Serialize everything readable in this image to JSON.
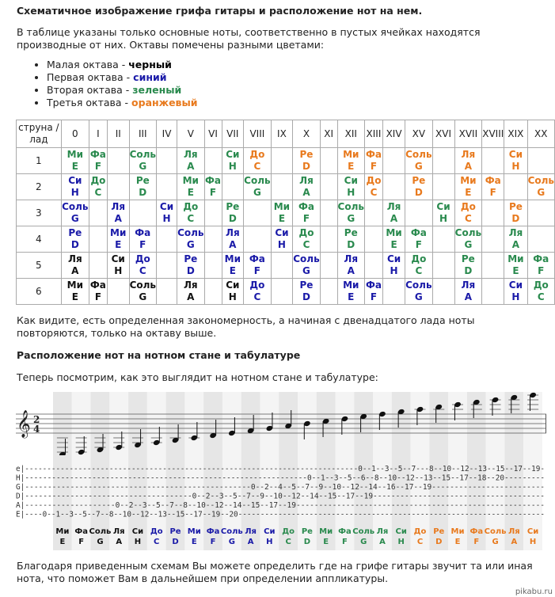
{
  "title": "Схематичное изображение грифа гитары и расположение нот на нем.",
  "intro": "В таблице указаны только основные ноты, соответственно в пустых ячейках находятся производные от них. Октавы помечены разными цветами:",
  "octaves": [
    {
      "label": "Малая октава - ",
      "color_name": "черный",
      "key": "k"
    },
    {
      "label": "Первая октава - ",
      "color_name": "синий",
      "key": "b"
    },
    {
      "label": "Вторая октава - ",
      "color_name": "зеленый",
      "key": "g"
    },
    {
      "label": "Третья октава - ",
      "color_name": "оранжевый",
      "key": "o"
    }
  ],
  "colors": {
    "k": "#111111",
    "b": "#1a1aa8",
    "g": "#2a8a4e",
    "o": "#e87a1e"
  },
  "table": {
    "corner": "струна / лад",
    "frets": [
      "0",
      "I",
      "II",
      "III",
      "IV",
      "V",
      "VI",
      "VII",
      "VIII",
      "IX",
      "X",
      "XI",
      "XII",
      "XIII",
      "XIV",
      "XV",
      "XVI",
      "XVII",
      "XVIII",
      "XIX",
      "XX"
    ],
    "rows": [
      {
        "string": "1",
        "cells": [
          [
            "Ми",
            "Е",
            "g"
          ],
          [
            "Фа",
            "F",
            "g"
          ],
          null,
          [
            "Соль",
            "G",
            "g"
          ],
          null,
          [
            "Ля",
            "A",
            "g"
          ],
          null,
          [
            "Си",
            "H",
            "g"
          ],
          [
            "До",
            "C",
            "o"
          ],
          null,
          [
            "Ре",
            "D",
            "o"
          ],
          null,
          [
            "Ми",
            "E",
            "o"
          ],
          [
            "Фа",
            "F",
            "o"
          ],
          null,
          [
            "Соль",
            "G",
            "o"
          ],
          null,
          [
            "Ля",
            "A",
            "o"
          ],
          null,
          [
            "Си",
            "H",
            "o"
          ],
          null
        ]
      },
      {
        "string": "2",
        "cells": [
          [
            "Си",
            "Н",
            "b"
          ],
          [
            "До",
            "С",
            "g"
          ],
          null,
          [
            "Ре",
            "D",
            "g"
          ],
          null,
          [
            "Ми",
            "Е",
            "g"
          ],
          [
            "Фа",
            "F",
            "g"
          ],
          null,
          [
            "Соль",
            "G",
            "g"
          ],
          null,
          [
            "Ля",
            "А",
            "g"
          ],
          null,
          [
            "Си",
            "Н",
            "g"
          ],
          [
            "До",
            "C",
            "o"
          ],
          null,
          [
            "Ре",
            "D",
            "o"
          ],
          null,
          [
            "Ми",
            "E",
            "o"
          ],
          [
            "Фа",
            "F",
            "o"
          ],
          null,
          [
            "Соль",
            "G",
            "o"
          ]
        ]
      },
      {
        "string": "3",
        "cells": [
          [
            "Соль",
            "G",
            "b"
          ],
          null,
          [
            "Ля",
            "А",
            "b"
          ],
          null,
          [
            "Си",
            "Н",
            "b"
          ],
          [
            "До",
            "С",
            "g"
          ],
          null,
          [
            "Ре",
            "D",
            "g"
          ],
          null,
          [
            "Ми",
            "Е",
            "g"
          ],
          [
            "Фа",
            "F",
            "g"
          ],
          null,
          [
            "Соль",
            "G",
            "g"
          ],
          null,
          [
            "Ля",
            "А",
            "g"
          ],
          null,
          [
            "Си",
            "Н",
            "g"
          ],
          [
            "До",
            "C",
            "o"
          ],
          null,
          [
            "Ре",
            "D",
            "o"
          ],
          null
        ]
      },
      {
        "string": "4",
        "cells": [
          [
            "Ре",
            "D",
            "b"
          ],
          null,
          [
            "Ми",
            "Е",
            "b"
          ],
          [
            "Фа",
            "F",
            "b"
          ],
          null,
          [
            "Соль",
            "G",
            "b"
          ],
          null,
          [
            "Ля",
            "А",
            "b"
          ],
          null,
          [
            "Си",
            "Н",
            "b"
          ],
          [
            "До",
            "С",
            "g"
          ],
          null,
          [
            "Ре",
            "D",
            "g"
          ],
          null,
          [
            "Ми",
            "Е",
            "g"
          ],
          [
            "Фа",
            "F",
            "g"
          ],
          null,
          [
            "Соль",
            "G",
            "g"
          ],
          null,
          [
            "Ля",
            "А",
            "g"
          ],
          null
        ]
      },
      {
        "string": "5",
        "cells": [
          [
            "Ля",
            "А",
            "k"
          ],
          null,
          [
            "Си",
            "Н",
            "k"
          ],
          [
            "До",
            "С",
            "b"
          ],
          null,
          [
            "Ре",
            "D",
            "b"
          ],
          null,
          [
            "Ми",
            "Е",
            "b"
          ],
          [
            "Фа",
            "F",
            "b"
          ],
          null,
          [
            "Соль",
            "G",
            "b"
          ],
          null,
          [
            "Ля",
            "А",
            "b"
          ],
          null,
          [
            "Си",
            "Н",
            "b"
          ],
          [
            "До",
            "С",
            "g"
          ],
          null,
          [
            "Ре",
            "D",
            "g"
          ],
          null,
          [
            "Ми",
            "Е",
            "g"
          ],
          [
            "Фа",
            "F",
            "g"
          ]
        ]
      },
      {
        "string": "6",
        "cells": [
          [
            "Ми",
            "Е",
            "k"
          ],
          [
            "Фа",
            "F",
            "k"
          ],
          null,
          [
            "Соль",
            "G",
            "k"
          ],
          null,
          [
            "Ля",
            "А",
            "k"
          ],
          null,
          [
            "Си",
            "Н",
            "k"
          ],
          [
            "До",
            "С",
            "b"
          ],
          null,
          [
            "Ре",
            "D",
            "b"
          ],
          null,
          [
            "Ми",
            "Е",
            "b"
          ],
          [
            "Фа",
            "F",
            "b"
          ],
          null,
          [
            "Соль",
            "G",
            "b"
          ],
          null,
          [
            "Ля",
            "А",
            "b"
          ],
          null,
          [
            "Си",
            "Н",
            "b"
          ],
          [
            "До",
            "С",
            "g"
          ]
        ]
      }
    ]
  },
  "after_table": "Как видите, есть определенная закономерность, а начиная с двенадцатого лада ноты повторяются, только на октаву выше.",
  "section2_title": "Расположение нот на нотном стане и табулатуре",
  "section2_intro": "Теперь посмотрим, как это выглядит на нотном стане и табулатуре:",
  "staff": {
    "clef": "𝄞",
    "time_top": "2",
    "time_bottom": "4"
  },
  "tab": {
    "strings": [
      "e",
      "H",
      "G",
      "D",
      "A",
      "E"
    ],
    "lines": [
      "e|---------------------------------------------------------------------------0--1--3--5--7---8--10--12--13--15--17--19-",
      "H|---------------------------------------------------------------0--1--3--5--6--8--10--12--13--15--17--18--20---------",
      "G|--------------------------------------------------0--2--4--5--7--9--10--12--14--16--17--19-------------------------",
      "D|-------------------------------------0--2--3--5--7--9--10--12--14--15--17--19--------------------------------------",
      "A|--------------------0--2--3--5--7--8--10--12--14--15--17--19-------------------------------------------------------",
      "E|----0--1--3--5--7--8--10--12--13--15--17--19--20---------------------------------------------------------------------"
    ]
  },
  "note_names": [
    [
      "Ми",
      "E",
      "k"
    ],
    [
      "Фа",
      "F",
      "k"
    ],
    [
      "Соль",
      "G",
      "k"
    ],
    [
      "Ля",
      "A",
      "k"
    ],
    [
      "Си",
      "H",
      "k"
    ],
    [
      "До",
      "C",
      "b"
    ],
    [
      "Ре",
      "D",
      "b"
    ],
    [
      "Ми",
      "E",
      "b"
    ],
    [
      "Фа",
      "F",
      "b"
    ],
    [
      "Соль",
      "G",
      "b"
    ],
    [
      "Ля",
      "A",
      "b"
    ],
    [
      "Си",
      "H",
      "b"
    ],
    [
      "До",
      "C",
      "g"
    ],
    [
      "Ре",
      "D",
      "g"
    ],
    [
      "Ми",
      "E",
      "g"
    ],
    [
      "Фа",
      "F",
      "g"
    ],
    [
      "Соль",
      "G",
      "g"
    ],
    [
      "Ля",
      "A",
      "g"
    ],
    [
      "Си",
      "H",
      "g"
    ],
    [
      "До",
      "C",
      "o"
    ],
    [
      "Ре",
      "D",
      "o"
    ],
    [
      "Ми",
      "E",
      "o"
    ],
    [
      "Фа",
      "F",
      "o"
    ],
    [
      "Соль",
      "G",
      "o"
    ],
    [
      "Ля",
      "A",
      "o"
    ],
    [
      "Си",
      "H",
      "o"
    ]
  ],
  "footer": "Благодаря приведенным схемам Вы можете определить где на грифе гитары звучит та или иная нота, что поможет Вам в дальнейшем при определении аппликатуры.",
  "watermark": "pikabu.ru"
}
